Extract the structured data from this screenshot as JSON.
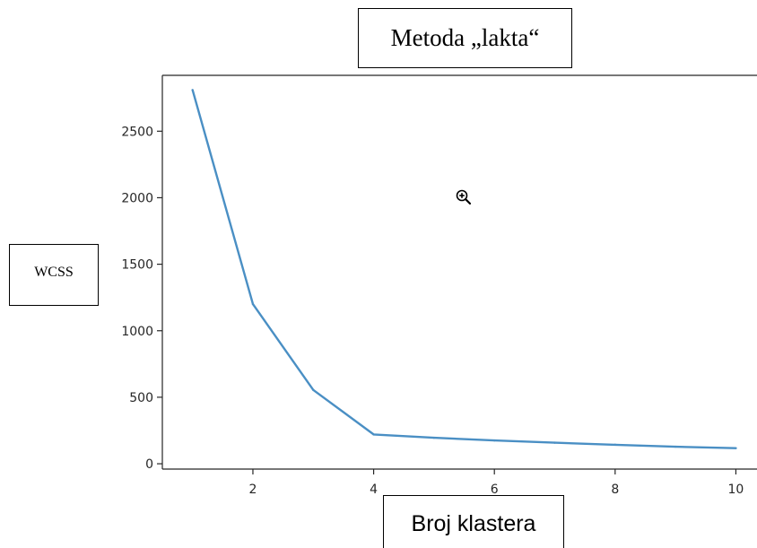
{
  "chart_data": {
    "type": "line",
    "title": "Metoda „lakta“",
    "xlabel": "Broj klastera",
    "ylabel": "WCSS",
    "x": [
      1,
      2,
      3,
      4,
      5,
      6,
      7,
      8,
      9,
      10
    ],
    "series": [
      {
        "values": [
          2810,
          1200,
          555,
          220,
          195,
          175,
          158,
          143,
          128,
          117
        ],
        "color": "#4a8fc4"
      }
    ],
    "xlim": [
      0.5,
      10.35
    ],
    "ylim": [
      -40,
      2920
    ],
    "xticks": [
      2,
      4,
      6,
      8,
      10
    ],
    "yticks": [
      0,
      500,
      1000,
      1500,
      2000,
      2500
    ],
    "grid": false
  },
  "icons": {
    "zoom": "zoom-in-icon"
  }
}
